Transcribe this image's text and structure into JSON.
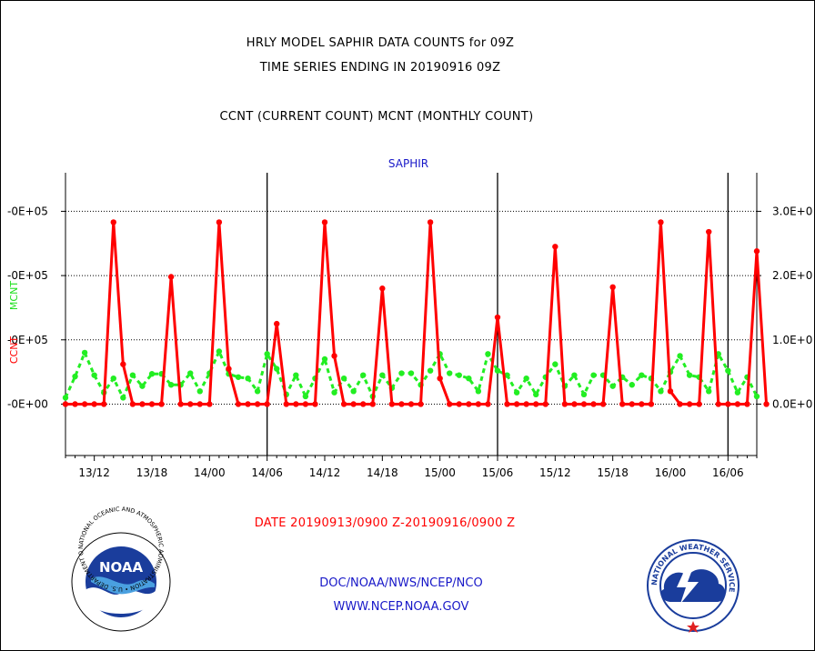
{
  "titles": {
    "line1": "HRLY MODEL SAPHIR DATA COUNTS for 09Z",
    "line2": "TIME SERIES ENDING IN 20190916 09Z",
    "line3": "CCNT (CURRENT COUNT) MCNT (MONTHLY COUNT)"
  },
  "footer": {
    "date_range": "DATE 20190913/0900 Z-20190916/0900 Z",
    "credit_line1": "DOC/NOAA/NWS/NCEP/NCO",
    "credit_line2": "WWW.NCEP.NOAA.GOV"
  },
  "logos": {
    "noaa_text": "NOAA",
    "noaa_ring": "NATIONAL OCEANIC AND ATMOSPHERIC ADMINISTRATION • U.S. DEPARTMENT OF COMMERCE",
    "nws_ring": "NATIONAL WEATHER SERVICE"
  },
  "chart_data": {
    "type": "line",
    "subtitle": "SAPHIR",
    "ylabel_left_red": "CCNT",
    "ylabel_left_green": "MCNT",
    "y_ticks_left": [
      "-0E+00",
      "-0E+05",
      "-0E+05",
      "-0E+05"
    ],
    "y_ticks_right": [
      "0.0E+0",
      "1.0E+0",
      "2.0E+0",
      "3.0E+0"
    ],
    "y_tick_values": [
      0,
      100000,
      200000,
      300000
    ],
    "ylim": [
      -80000,
      360000
    ],
    "x_tick_labels": [
      "13/12",
      "13/18",
      "14/00",
      "14/06",
      "14/12",
      "14/18",
      "15/00",
      "15/06",
      "15/12",
      "15/18",
      "16/00",
      "16/06"
    ],
    "x_tick_hours": [
      3,
      9,
      15,
      21,
      27,
      33,
      39,
      45,
      51,
      57,
      63,
      69
    ],
    "x_unit": "hours since 20190913/0900 Z",
    "xlim": [
      0,
      72
    ],
    "day_boundaries_hours": [
      21,
      45,
      69
    ],
    "colors": {
      "ccnt": "#ff0000",
      "mcnt": "#22ee22",
      "grid": "#000000",
      "text": "#000000",
      "blue": "#1818c8"
    },
    "series": [
      {
        "name": "CCNT",
        "color": "#ff0000",
        "values": [
          0,
          0,
          0,
          0,
          0,
          283000,
          62000,
          0,
          0,
          0,
          0,
          198000,
          0,
          0,
          0,
          0,
          283000,
          55000,
          0,
          0,
          0,
          0,
          125000,
          0,
          0,
          0,
          0,
          283000,
          75000,
          0,
          0,
          0,
          0,
          180000,
          0,
          0,
          0,
          0,
          283000,
          40000,
          0,
          0,
          0,
          0,
          0,
          135000,
          0,
          0,
          0,
          0,
          0,
          245000,
          0,
          0,
          0,
          0,
          0,
          182000,
          0,
          0,
          0,
          0,
          283000,
          20000,
          0,
          0,
          0,
          268000,
          0,
          0,
          0,
          0,
          238000,
          0
        ]
      },
      {
        "name": "MCNT",
        "color": "#22ee22",
        "values": [
          10000,
          43000,
          80000,
          45000,
          18000,
          40000,
          10000,
          45000,
          28000,
          47000,
          47000,
          30000,
          30000,
          48000,
          20000,
          48000,
          82000,
          47000,
          42000,
          40000,
          20000,
          78000,
          55000,
          15000,
          45000,
          12000,
          40000,
          70000,
          18000,
          40000,
          20000,
          45000,
          12000,
          45000,
          25000,
          48000,
          48000,
          30000,
          52000,
          78000,
          48000,
          45000,
          40000,
          20000,
          78000,
          52000,
          45000,
          18000,
          40000,
          15000,
          42000,
          62000,
          28000,
          45000,
          15000,
          45000,
          45000,
          28000,
          42000,
          30000,
          45000,
          40000,
          20000,
          50000,
          75000,
          45000,
          42000,
          20000,
          78000,
          52000,
          18000,
          42000,
          12000
        ]
      }
    ],
    "grid": true,
    "legend": "none"
  }
}
